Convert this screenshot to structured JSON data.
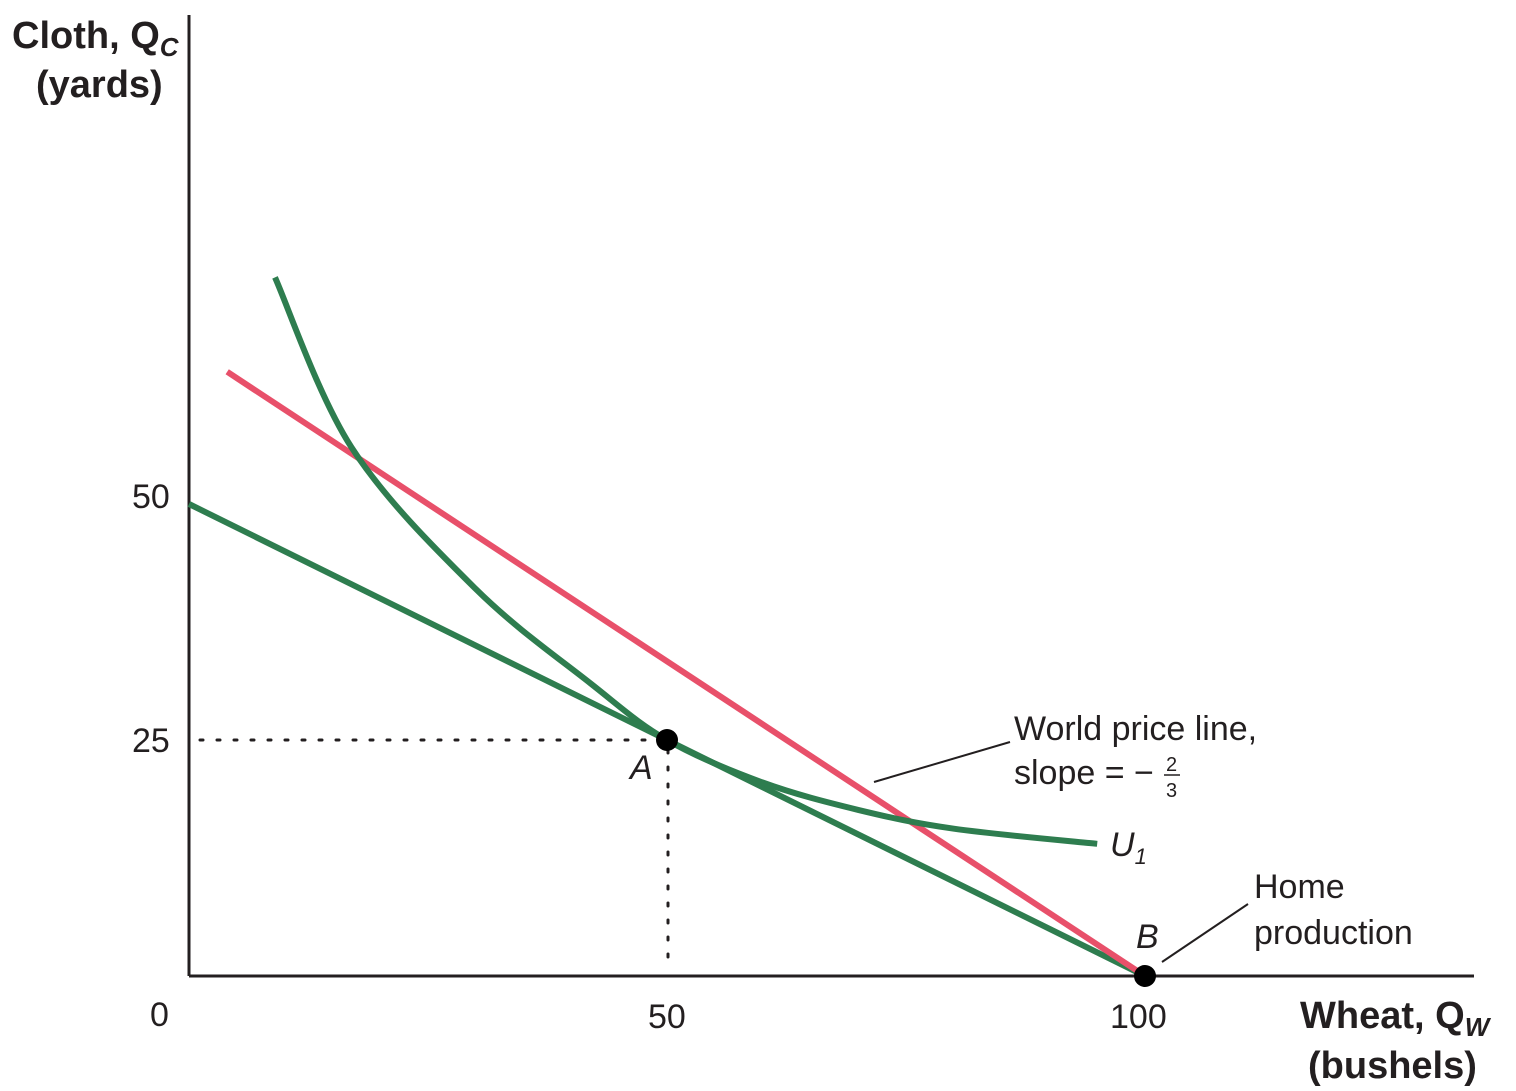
{
  "chart_data": {
    "type": "line",
    "x_axis": {
      "label": "Wheat, Q",
      "label_sub": "W",
      "units": "(bushels)",
      "ticks": [
        "0",
        "50",
        "100"
      ],
      "range": [
        0,
        140
      ]
    },
    "y_axis": {
      "label": "Cloth, Q",
      "label_sub": "C",
      "units": "(yards)",
      "ticks": [
        "50",
        "25"
      ],
      "range": [
        0,
        100
      ]
    },
    "lines": [
      {
        "id": "home-ppf",
        "color": "#2e7d4f",
        "points": [
          [
            0,
            50
          ],
          [
            100,
            0
          ]
        ]
      },
      {
        "id": "world-price-line",
        "color": "#e8506a",
        "points": [
          [
            4,
            64
          ],
          [
            100,
            0
          ]
        ]
      }
    ],
    "curves": [
      {
        "id": "indifference-u1",
        "label": "U",
        "label_sub": "1",
        "color": "#2e7d4f",
        "points": [
          [
            9,
            74
          ],
          [
            17,
            56
          ],
          [
            30,
            41
          ],
          [
            42,
            31
          ],
          [
            50,
            25
          ],
          [
            60,
            20.5
          ],
          [
            70,
            17.6
          ],
          [
            80,
            15.6
          ],
          [
            95,
            14
          ]
        ]
      }
    ],
    "points": [
      {
        "id": "A",
        "label": "A",
        "x": 50,
        "y": 25
      },
      {
        "id": "B",
        "label": "B",
        "x": 100,
        "y": 0
      }
    ],
    "annotations": [
      {
        "id": "world-price",
        "lines": [
          "World price line,",
          "slope = −"
        ],
        "fraction_num": "2",
        "fraction_den": "3"
      },
      {
        "id": "home-production",
        "lines": [
          "Home",
          "production"
        ]
      }
    ]
  }
}
